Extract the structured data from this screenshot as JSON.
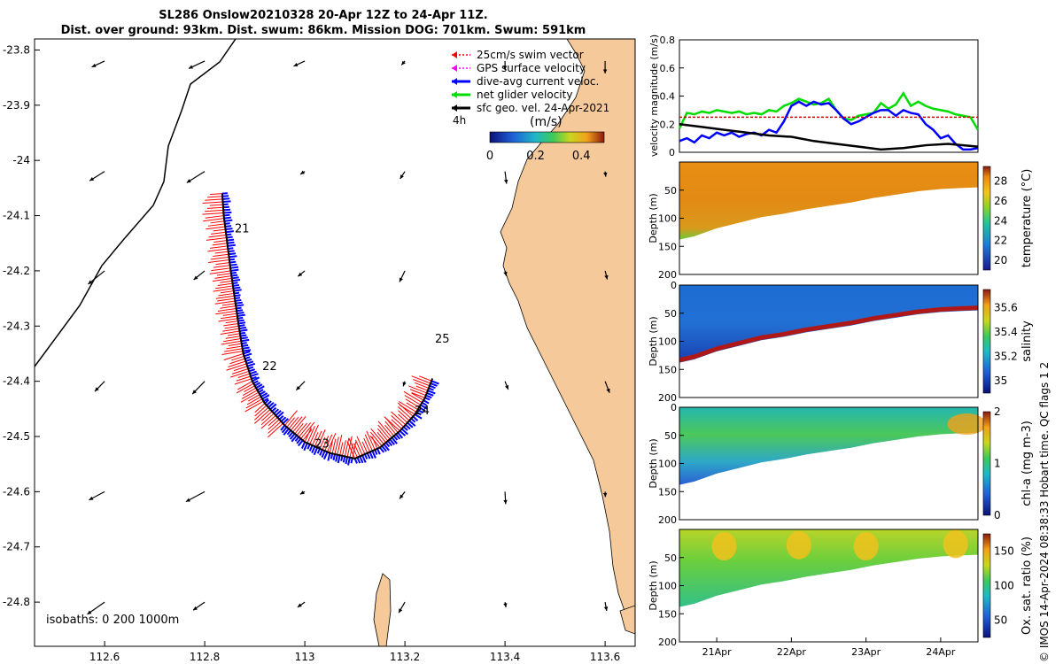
{
  "title": {
    "line1": "SL286 Onslow20210328 20-Apr 12Z to 24-Apr 11Z.",
    "line2": "Dist. over ground: 93km. Dist. swum: 86km. Mission DOG: 701km. Swum: 591km"
  },
  "credit": "© IMOS 14-Apr-2024 08:38:33 Hobart time. QC flags 1  2",
  "colors": {
    "land": "#f6c99b",
    "swim": "#ff0000",
    "gps": "#ff00ff",
    "current": "#0000ff",
    "glider": "#00dd00",
    "geo": "#000000",
    "threshold": "#cc0000"
  },
  "map": {
    "legend": [
      {
        "label": "25cm/s swim vector",
        "color": "#ff0000",
        "style": "dotted"
      },
      {
        "label": "GPS surface velocity",
        "color": "#ff00ff",
        "style": "dotted"
      },
      {
        "label": "dive-avg current veloc.",
        "color": "#0000ff",
        "style": "solid"
      },
      {
        "label": "net glider velocity",
        "color": "#00dd00",
        "style": "solid"
      },
      {
        "label": "sfc geo. vel. 24-Apr-2021",
        "color": "#000000",
        "style": "solid"
      }
    ],
    "time_step_label": "4h",
    "colorbar": {
      "unit": "(m/s)",
      "ticks": [
        0,
        0.2,
        0.4
      ],
      "range": [
        0,
        0.5
      ]
    },
    "isobaths_label": "isobaths:  0   200  1000m",
    "day_labels": [
      "21",
      "22",
      "23",
      "24",
      "25"
    ],
    "track": [
      [
        112.835,
        -24.06
      ],
      [
        112.838,
        -24.1
      ],
      [
        112.845,
        -24.15
      ],
      [
        112.852,
        -24.2
      ],
      [
        112.86,
        -24.25
      ],
      [
        112.868,
        -24.3
      ],
      [
        112.877,
        -24.35
      ],
      [
        112.895,
        -24.4
      ],
      [
        112.92,
        -24.44
      ],
      [
        112.96,
        -24.48
      ],
      [
        113.0,
        -24.51
      ],
      [
        113.05,
        -24.53
      ],
      [
        113.1,
        -24.54
      ],
      [
        113.15,
        -24.52
      ],
      [
        113.19,
        -24.49
      ],
      [
        113.22,
        -24.46
      ],
      [
        113.24,
        -24.43
      ],
      [
        113.255,
        -24.395
      ]
    ]
  },
  "chart_data": [
    {
      "type": "map",
      "xlabel": "longitude",
      "ylabel": "latitude",
      "xlim": [
        112.46,
        113.66
      ],
      "ylim": [
        -24.88,
        -23.78
      ],
      "xticks": [
        112.6,
        112.8,
        113,
        113.2,
        113.4,
        113.6
      ],
      "yticks": [
        -23.8,
        -23.9,
        -24,
        -24.1,
        -24.2,
        -24.3,
        -24.4,
        -24.5,
        -24.6,
        -24.7,
        -24.8
      ]
    },
    {
      "type": "line",
      "ylabel": "velocity magnitude (m/s)",
      "xlim": [
        20.5,
        24.5
      ],
      "ylim": [
        0,
        0.8
      ],
      "yticks": [
        0,
        0.2,
        0.4,
        0.6,
        0.8
      ],
      "series": [
        {
          "name": "net glider velocity",
          "color": "#00dd00",
          "x": [
            20.5,
            20.6,
            20.7,
            20.8,
            20.9,
            21.0,
            21.1,
            21.2,
            21.3,
            21.4,
            21.5,
            21.6,
            21.7,
            21.8,
            21.9,
            22.0,
            22.1,
            22.2,
            22.3,
            22.4,
            22.5,
            22.6,
            22.7,
            22.8,
            22.9,
            23.0,
            23.1,
            23.2,
            23.3,
            23.4,
            23.5,
            23.6,
            23.7,
            23.8,
            23.9,
            24.0,
            24.1,
            24.2,
            24.3,
            24.4,
            24.5
          ],
          "values": [
            0.17,
            0.28,
            0.27,
            0.29,
            0.28,
            0.3,
            0.29,
            0.28,
            0.29,
            0.27,
            0.28,
            0.27,
            0.3,
            0.29,
            0.33,
            0.35,
            0.38,
            0.36,
            0.34,
            0.35,
            0.38,
            0.3,
            0.24,
            0.23,
            0.26,
            0.27,
            0.28,
            0.35,
            0.31,
            0.34,
            0.42,
            0.33,
            0.36,
            0.33,
            0.31,
            0.3,
            0.29,
            0.27,
            0.26,
            0.25,
            0.16
          ]
        },
        {
          "name": "dive-avg current veloc.",
          "color": "#0000ff",
          "x": [
            20.5,
            20.6,
            20.7,
            20.8,
            20.9,
            21.0,
            21.1,
            21.2,
            21.3,
            21.4,
            21.5,
            21.6,
            21.7,
            21.8,
            21.9,
            22.0,
            22.1,
            22.2,
            22.3,
            22.4,
            22.5,
            22.6,
            22.7,
            22.8,
            22.9,
            23.0,
            23.1,
            23.2,
            23.3,
            23.4,
            23.5,
            23.6,
            23.7,
            23.8,
            23.9,
            24.0,
            24.1,
            24.2,
            24.3,
            24.4,
            24.5
          ],
          "values": [
            0.08,
            0.1,
            0.07,
            0.12,
            0.1,
            0.14,
            0.12,
            0.14,
            0.11,
            0.13,
            0.14,
            0.12,
            0.16,
            0.14,
            0.22,
            0.33,
            0.36,
            0.33,
            0.36,
            0.34,
            0.35,
            0.3,
            0.24,
            0.2,
            0.22,
            0.25,
            0.28,
            0.3,
            0.3,
            0.26,
            0.3,
            0.28,
            0.27,
            0.2,
            0.16,
            0.1,
            0.12,
            0.06,
            0.02,
            0.02,
            0.03
          ]
        },
        {
          "name": "sfc geo. vel.",
          "color": "#000000",
          "x": [
            20.5,
            20.8,
            21.1,
            21.4,
            21.7,
            22.0,
            22.3,
            22.6,
            22.9,
            23.2,
            23.5,
            23.8,
            24.1,
            24.5
          ],
          "values": [
            0.2,
            0.18,
            0.16,
            0.14,
            0.12,
            0.11,
            0.08,
            0.06,
            0.04,
            0.02,
            0.03,
            0.05,
            0.06,
            0.04
          ]
        },
        {
          "name": "25cm/s swim vector threshold",
          "color": "#cc0000",
          "x": [
            20.5,
            24.5
          ],
          "values": [
            0.25,
            0.25
          ]
        }
      ]
    },
    {
      "type": "heatmap",
      "ylabel": "Depth (m)",
      "colorbar_label": "temperature (°C)",
      "ylim": [
        200,
        0
      ],
      "yticks": [
        50,
        100,
        150,
        200
      ],
      "cbar_range": [
        19,
        29.5
      ],
      "cbar_ticks": [
        20,
        22,
        24,
        26,
        28
      ]
    },
    {
      "type": "heatmap",
      "ylabel": "Depth (m)",
      "colorbar_label": "salinity",
      "ylim": [
        200,
        0
      ],
      "yticks": [
        0,
        50,
        100,
        150,
        200
      ],
      "cbar_range": [
        34.9,
        35.75
      ],
      "cbar_ticks": [
        35,
        35.2,
        35.4,
        35.6
      ]
    },
    {
      "type": "heatmap",
      "ylabel": "Depth (m)",
      "colorbar_label": "chl-a (mg m-3)",
      "ylim": [
        200,
        0
      ],
      "yticks": [
        0,
        50,
        100,
        150,
        200
      ],
      "cbar_range": [
        0,
        2
      ],
      "cbar_ticks": [
        0,
        1,
        2
      ]
    },
    {
      "type": "heatmap",
      "ylabel": "Depth (m)",
      "colorbar_label": "Ox. sat. ratio (%)",
      "ylim": [
        200,
        0
      ],
      "yticks": [
        50,
        100,
        150,
        200
      ],
      "cbar_range": [
        25,
        175
      ],
      "cbar_ticks": [
        50,
        100,
        150
      ],
      "xtick_labels": [
        "21Apr",
        "22Apr",
        "23Apr",
        "24Apr"
      ],
      "xticks": [
        21,
        22,
        23,
        24
      ]
    }
  ],
  "seabed": {
    "x": [
      20.5,
      20.7,
      21.0,
      21.3,
      21.6,
      21.9,
      22.2,
      22.5,
      22.8,
      23.1,
      23.4,
      23.7,
      24.0,
      24.3,
      24.5
    ],
    "depth": [
      138,
      132,
      118,
      108,
      98,
      92,
      84,
      78,
      72,
      64,
      58,
      52,
      48,
      46,
      45
    ]
  }
}
